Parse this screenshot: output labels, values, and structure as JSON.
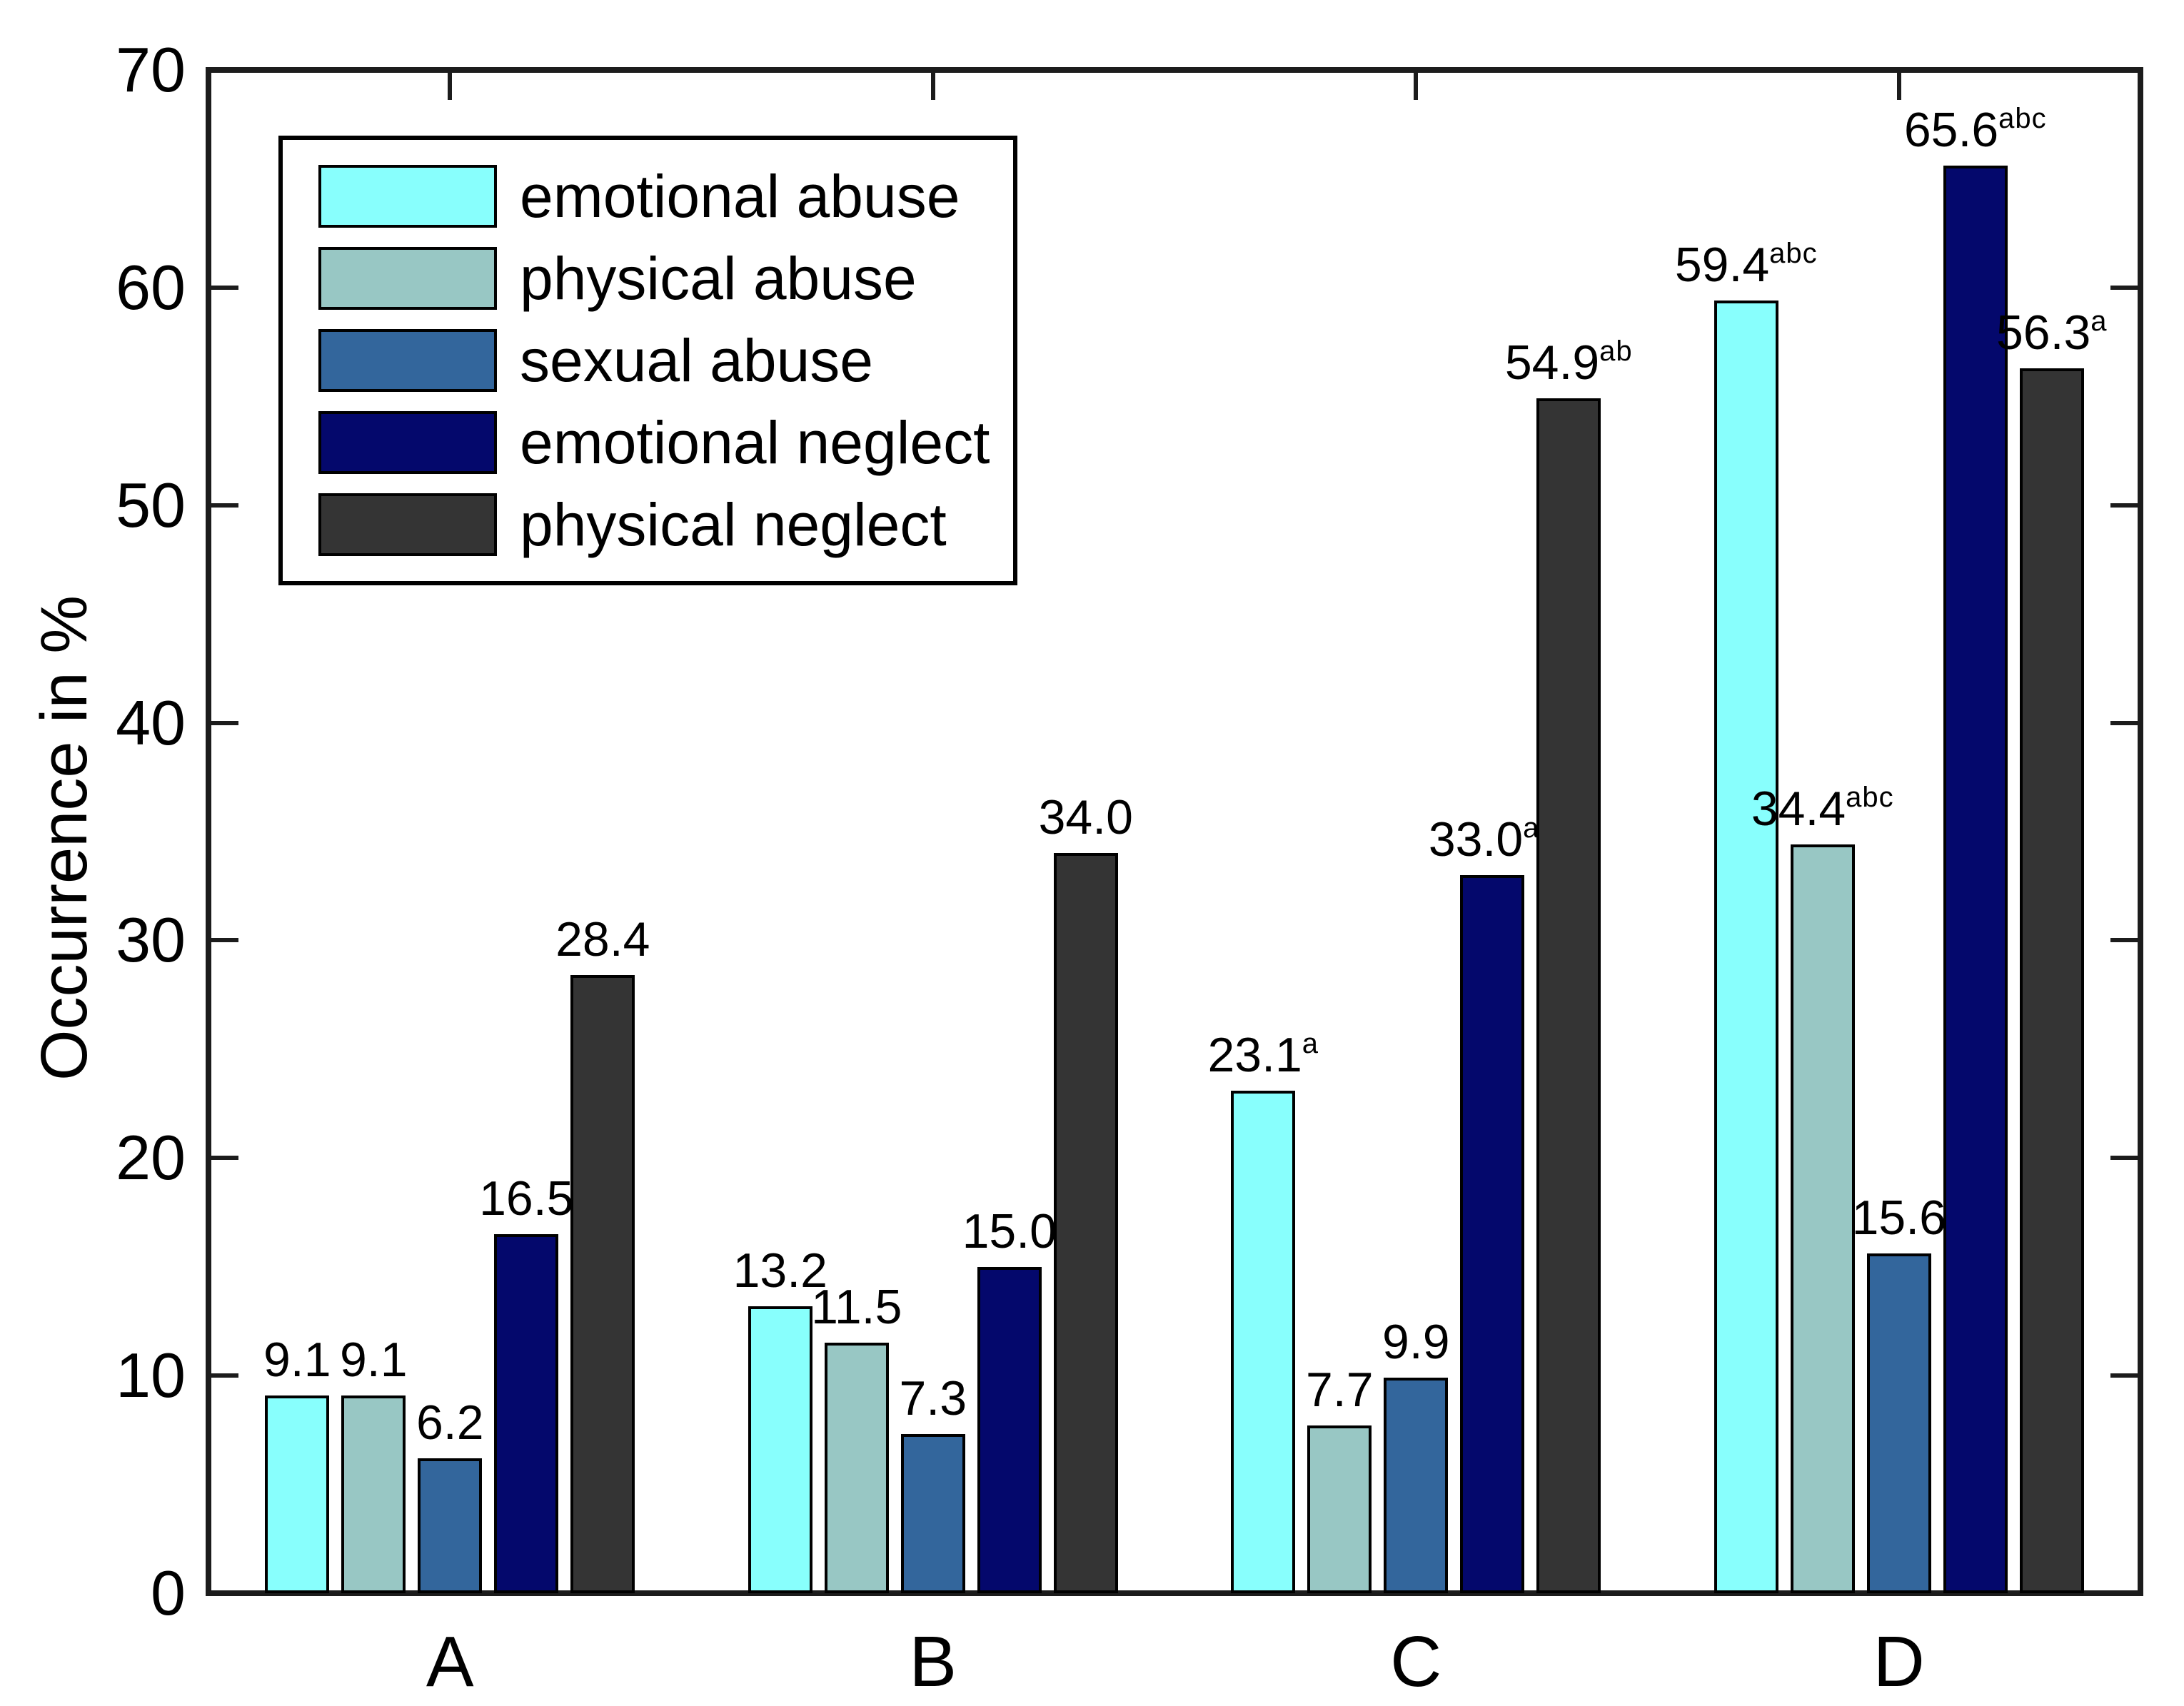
{
  "figure": {
    "background": "#FFFFFF",
    "axis_color": "#1C1C1C",
    "bar_edge_color": "#000000"
  },
  "chart_data": {
    "type": "bar",
    "title": "",
    "ylabel": "Occurrence in %",
    "xlabel": "",
    "ylim": [
      0,
      70
    ],
    "yticks": [
      "0",
      "10",
      "20",
      "30",
      "40",
      "50",
      "60",
      "70"
    ],
    "categories": [
      "A",
      "B",
      "C",
      "D"
    ],
    "grid": false,
    "legend_position": "top-left",
    "series": [
      {
        "name": "emotional abuse",
        "color": "#88FFFD",
        "values": [
          9.1,
          13.2,
          23.1,
          59.4
        ],
        "display": [
          "9.1",
          "13.2",
          "23.1",
          "59.4"
        ],
        "sups": [
          "",
          "",
          "a",
          "abc"
        ]
      },
      {
        "name": "physical abuse",
        "color": "#98C7C4",
        "values": [
          9.1,
          11.5,
          7.7,
          34.4
        ],
        "display": [
          "9.1",
          "11.5",
          "7.7",
          "34.4"
        ],
        "sups": [
          "",
          "",
          "",
          "abc"
        ]
      },
      {
        "name": "sexual abuse",
        "color": "#33669C",
        "values": [
          6.2,
          7.3,
          9.9,
          15.6
        ],
        "display": [
          "6.2",
          "7.3",
          "9.9",
          "15.6"
        ],
        "sups": [
          "",
          "",
          "",
          ""
        ]
      },
      {
        "name": "emotional neglect",
        "color": "#04086C",
        "values": [
          16.5,
          15.0,
          33.0,
          65.6
        ],
        "display": [
          "16.5",
          "15.0",
          "33.0",
          "65.6"
        ],
        "sups": [
          "",
          "",
          "ab",
          "abc"
        ]
      },
      {
        "name": "physical neglect",
        "color": "#343434",
        "values": [
          28.4,
          34.0,
          54.9,
          56.3
        ],
        "display": [
          "28.4",
          "34.0",
          "54.9",
          "56.3"
        ],
        "sups": [
          "",
          "",
          "ab",
          "a"
        ]
      }
    ]
  }
}
